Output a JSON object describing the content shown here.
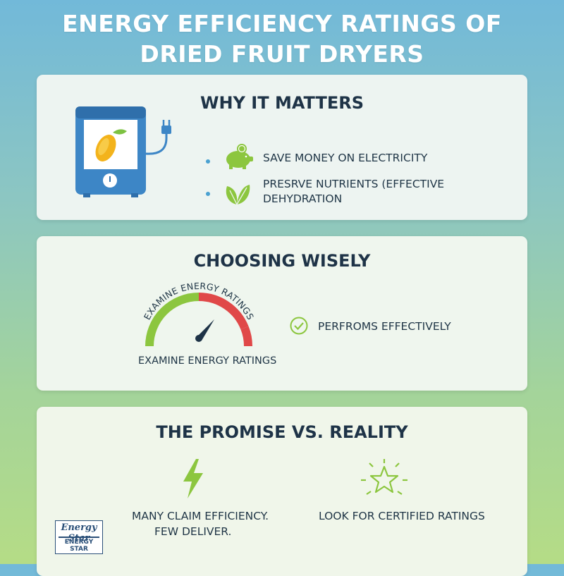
{
  "title": {
    "line1": "ENERGY EFFICIENCY RATINGS OF",
    "line2": "DRIED FRUIT DRYERS"
  },
  "why_it_matters": {
    "heading": "WHY IT MATTERS",
    "items": [
      {
        "label": "SAVE MONEY ON ELECTRICITY",
        "icon": "piggy-bank-icon"
      },
      {
        "label_line1": "PRESRVE NUTRIENTS (EFFECTIVE",
        "label_line2": "DEHYDRATION",
        "icon": "leaves-icon"
      }
    ],
    "illustration": "fruit-dryer-icon"
  },
  "choosing_wisely": {
    "heading": "CHOOSING WISELY",
    "gauge_arc_label": "EXAMINE ENERGY RATINGS",
    "gauge_caption": "EXAMINE ENERGY RATINGS",
    "check_label": "PERFROMS EFFECTIVELY"
  },
  "promise_vs_reality": {
    "heading": "THE PROMISE VS. REALITY",
    "left_line1": "MANY CLAIM EFFICIENCY.",
    "left_line2": "FEW DELIVER.",
    "right_label": "LOOK FOR CERTIFIED RATINGS"
  },
  "logo": {
    "script": "Energy Star",
    "sub": "ENERGY STAR"
  },
  "colors": {
    "accent_blue": "#4aa1d1",
    "accent_green": "#8cc63f",
    "gauge_red": "#e04848",
    "heading": "#1e3347"
  }
}
